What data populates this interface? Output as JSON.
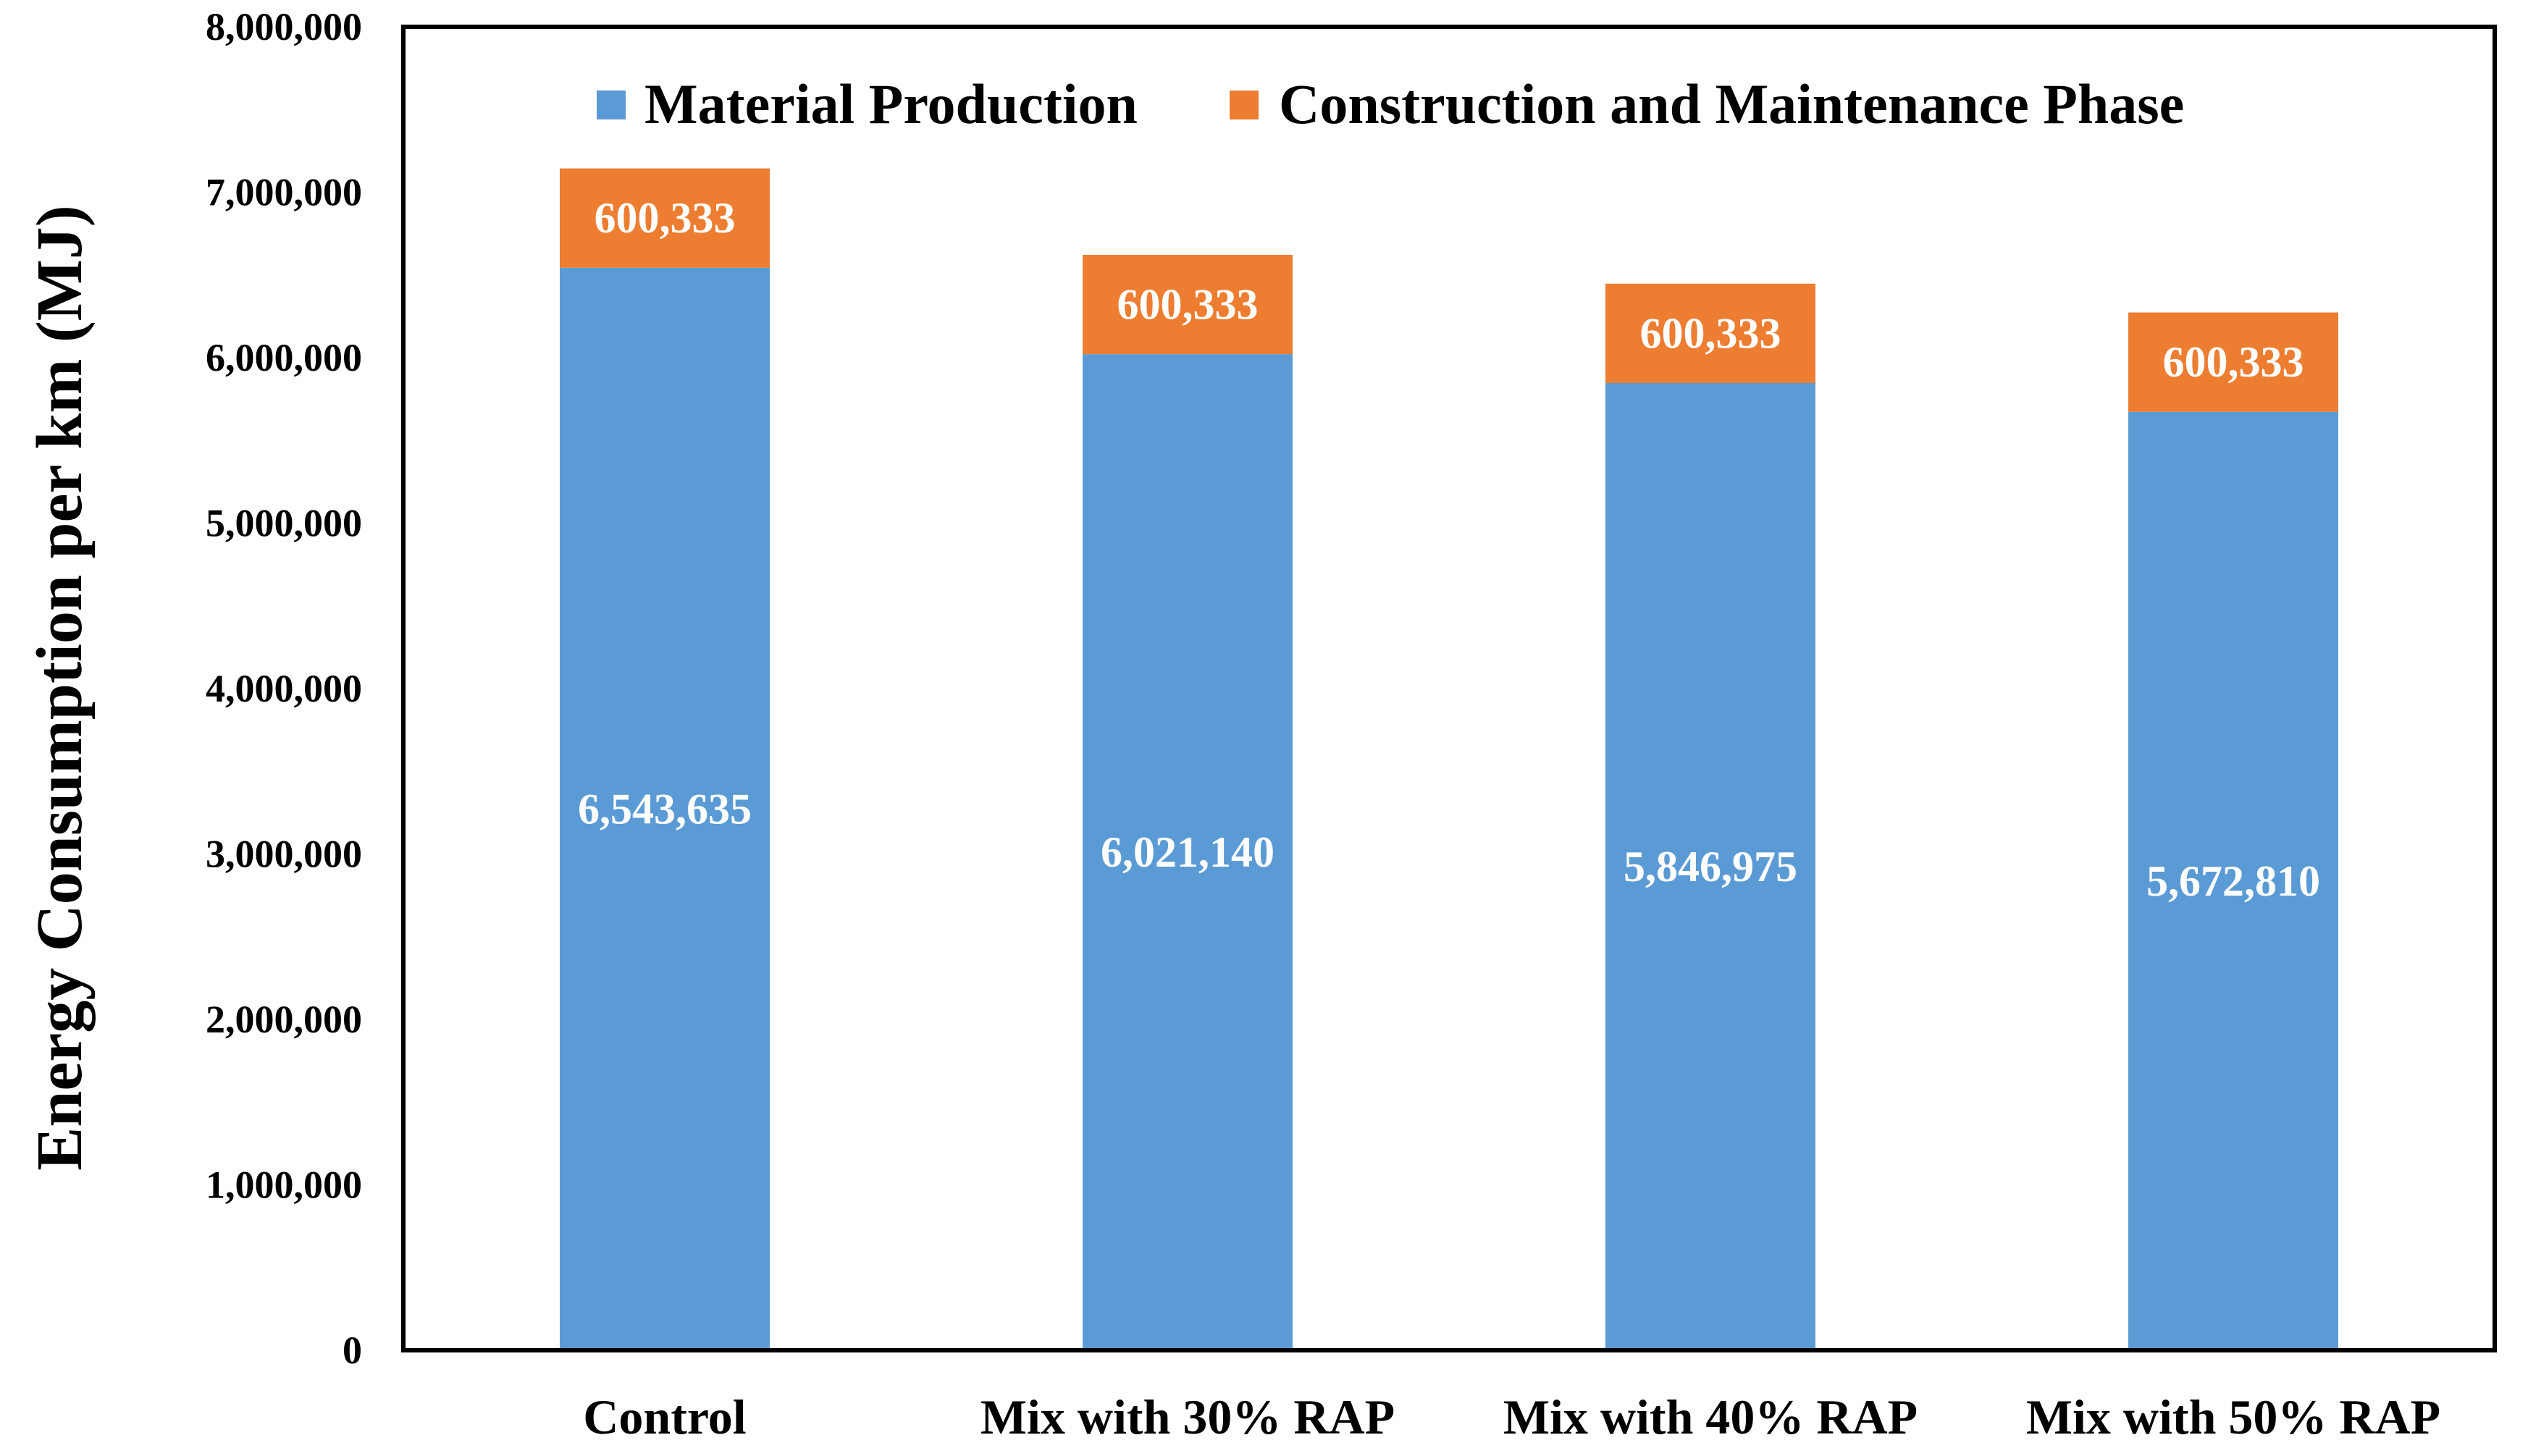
{
  "chart_data": {
    "type": "bar",
    "stacked": true,
    "title": "",
    "xlabel": "",
    "ylabel": "Energy Consumption per km (MJ)",
    "ylim": [
      0,
      8000000
    ],
    "yticks": [
      "0",
      "1,000,000",
      "2,000,000",
      "3,000,000",
      "4,000,000",
      "5,000,000",
      "6,000,000",
      "7,000,000",
      "8,000,000"
    ],
    "ytick_values": [
      0,
      1000000,
      2000000,
      3000000,
      4000000,
      5000000,
      6000000,
      7000000,
      8000000
    ],
    "categories": [
      "Control",
      "Mix with 30% RAP",
      "Mix with 40% RAP",
      "Mix with 50% RAP"
    ],
    "series": [
      {
        "name": "Material Production",
        "color": "#5B9BD5",
        "values": [
          6543635,
          6021140,
          5846975,
          5672810
        ],
        "labels": [
          "6,543,635",
          "6,021,140",
          "5,846,975",
          "5,672,810"
        ]
      },
      {
        "name": "Construction and Maintenance Phase",
        "color": "#ED7D31",
        "values": [
          600333,
          600333,
          600333,
          600333
        ],
        "labels": [
          "600,333",
          "600,333",
          "600,333",
          "600,333"
        ]
      }
    ],
    "legend_position": "top-center",
    "grid": false
  }
}
